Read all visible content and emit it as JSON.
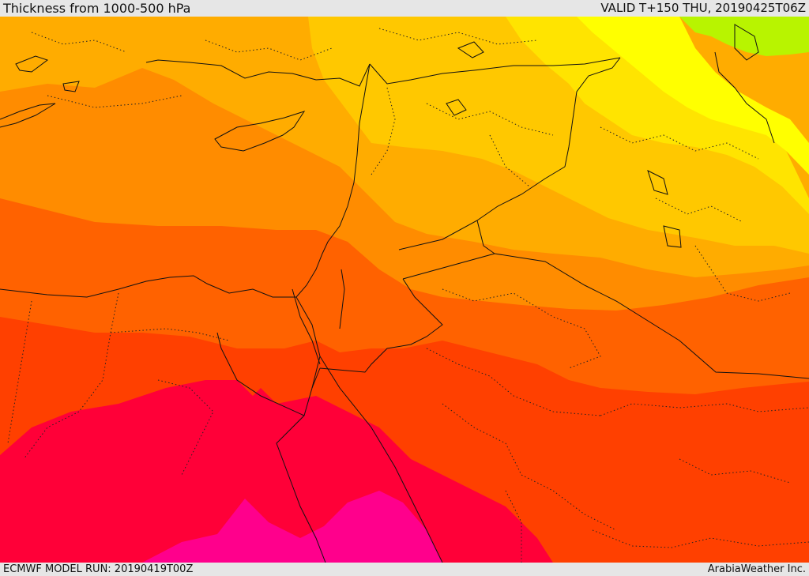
{
  "header": {
    "title": "Thickness from 1000-500 hPa",
    "valid": "VALID T+150 THU, 20190425T06Z"
  },
  "footer": {
    "model_run": "ECMWF MODEL RUN: 20190419T00Z",
    "credit": "ArabiaWeather Inc."
  },
  "colors": {
    "band_1": "#b8f400",
    "band_2": "#ffff00",
    "band_3": "#ffe400",
    "band_4": "#ffc800",
    "band_5": "#ffac00",
    "band_6": "#ff8c00",
    "band_7": "#ff6200",
    "band_8": "#ff4000",
    "band_9": "#ff0038",
    "band_10": "#ff008c"
  }
}
